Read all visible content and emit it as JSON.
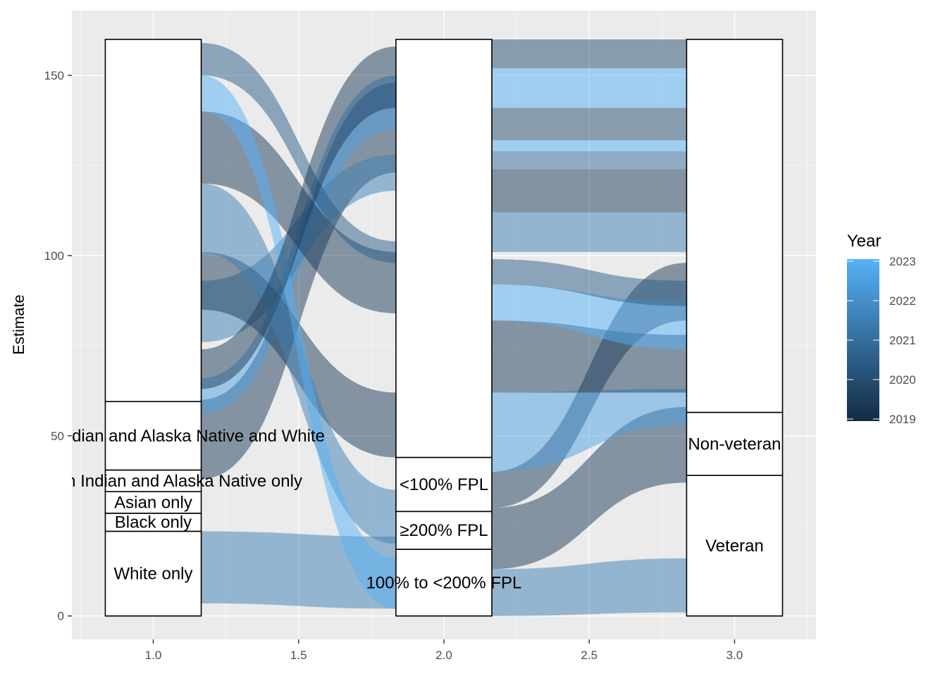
{
  "chart_data": {
    "type": "alluvial",
    "title": "",
    "xlabel": "",
    "ylabel": "Estimate",
    "xlim": [
      0.72,
      3.28
    ],
    "ylim": [
      -6.5,
      168
    ],
    "x_ticks": [
      1.0,
      1.5,
      2.0,
      2.5,
      3.0
    ],
    "x_tick_labels": [
      "1.0",
      "1.5",
      "2.0",
      "2.5",
      "3.0"
    ],
    "y_ticks": [
      0,
      50,
      100,
      150
    ],
    "y_tick_labels": [
      "0",
      "50",
      "100",
      "150"
    ],
    "grid": true,
    "axes": [
      {
        "x": 1,
        "strata": [
          {
            "label": "White only",
            "ymin": 0,
            "ymax": 23.5
          },
          {
            "label": "Black only",
            "ymin": 23.5,
            "ymax": 28.5
          },
          {
            "label": "Asian only",
            "ymin": 28.5,
            "ymax": 34.5
          },
          {
            "label": "American Indian and Alaska Native only",
            "ymin": 34.5,
            "ymax": 40.5
          },
          {
            "label": "American Indian and Alaska Native and White",
            "ymin": 40.5,
            "ymax": 59.5
          },
          {
            "label": "",
            "ymin": 59.5,
            "ymax": 160
          }
        ]
      },
      {
        "x": 2,
        "strata": [
          {
            "label": "100% to <200% FPL",
            "ymin": 0,
            "ymax": 18.5
          },
          {
            "label": "≥200% FPL",
            "ymin": 18.5,
            "ymax": 29
          },
          {
            "label": "<100% FPL",
            "ymin": 29,
            "ymax": 44
          },
          {
            "label": "",
            "ymin": 44,
            "ymax": 160
          }
        ]
      },
      {
        "x": 3,
        "strata": [
          {
            "label": "Veteran",
            "ymin": 0,
            "ymax": 39
          },
          {
            "label": "Non-veteran",
            "ymin": 39,
            "ymax": 56.5
          },
          {
            "label": "",
            "ymin": 56.5,
            "ymax": 160
          }
        ]
      }
    ],
    "flows": [
      {
        "from": 1,
        "to": 2,
        "y0a": 3.5,
        "y0b": 23.5,
        "y1a": 2,
        "y1b": 22,
        "year": 2021.5
      },
      {
        "from": 1,
        "to": 2,
        "y0a": 38,
        "y0b": 60,
        "y1a": 123,
        "y1b": 148,
        "year": 2019.5
      },
      {
        "from": 1,
        "to": 2,
        "y0a": 56,
        "y0b": 66,
        "y1a": 135,
        "y1b": 150,
        "year": 2022.5
      },
      {
        "from": 1,
        "to": 2,
        "y0a": 76,
        "y0b": 93,
        "y1a": 118,
        "y1b": 128,
        "year": 2021.5
      },
      {
        "from": 1,
        "to": 2,
        "y0a": 85,
        "y0b": 101,
        "y1a": 44,
        "y1b": 62,
        "year": 2019.5
      },
      {
        "from": 1,
        "to": 2,
        "y0a": 101,
        "y0b": 120,
        "y1a": 20,
        "y1b": 35,
        "year": 2021.5
      },
      {
        "from": 1,
        "to": 2,
        "y0a": 120,
        "y0b": 140,
        "y1a": 84,
        "y1b": 101,
        "year": 2019.5
      },
      {
        "from": 1,
        "to": 2,
        "y0a": 140,
        "y0b": 150,
        "y1a": 2,
        "y1b": 16,
        "year": 2023
      },
      {
        "from": 1,
        "to": 2,
        "y0a": 150,
        "y0b": 159,
        "y1a": 98,
        "y1b": 104,
        "year": 2020.5
      },
      {
        "from": 1,
        "to": 2,
        "y0a": 63,
        "y0b": 74,
        "y1a": 141,
        "y1b": 158,
        "year": 2019.5
      },
      {
        "from": 2,
        "to": 3,
        "y0a": 101,
        "y0b": 112,
        "y1a": 101,
        "y1b": 112,
        "year": 2021.5
      },
      {
        "from": 2,
        "to": 3,
        "y0a": 112,
        "y0b": 124,
        "y1a": 112,
        "y1b": 124,
        "year": 2019.5
      },
      {
        "from": 2,
        "to": 3,
        "y0a": 124,
        "y0b": 129,
        "y1a": 124,
        "y1b": 129,
        "year": 2021
      },
      {
        "from": 2,
        "to": 3,
        "y0a": 129,
        "y0b": 132,
        "y1a": 129,
        "y1b": 132,
        "year": 2023
      },
      {
        "from": 2,
        "to": 3,
        "y0a": 132,
        "y0b": 141,
        "y1a": 132,
        "y1b": 141,
        "year": 2020
      },
      {
        "from": 2,
        "to": 3,
        "y0a": 141,
        "y0b": 152,
        "y1a": 141,
        "y1b": 152,
        "year": 2023
      },
      {
        "from": 2,
        "to": 3,
        "y0a": 152,
        "y0b": 160,
        "y1a": 152,
        "y1b": 160,
        "year": 2020
      },
      {
        "from": 2,
        "to": 3,
        "y0a": 0,
        "y0b": 13,
        "y1a": 1,
        "y1b": 16,
        "year": 2021.5
      },
      {
        "from": 2,
        "to": 3,
        "y0a": 13,
        "y0b": 30,
        "y1a": 37,
        "y1b": 58,
        "year": 2019.5
      },
      {
        "from": 2,
        "to": 3,
        "y0a": 30,
        "y0b": 40,
        "y1a": 82,
        "y1b": 98,
        "year": 2019.5
      },
      {
        "from": 2,
        "to": 3,
        "y0a": 40,
        "y0b": 62,
        "y1a": 53,
        "y1b": 63,
        "year": 2022.5
      },
      {
        "from": 2,
        "to": 3,
        "y0a": 62,
        "y0b": 82,
        "y1a": 62,
        "y1b": 78,
        "year": 2019.5
      },
      {
        "from": 2,
        "to": 3,
        "y0a": 82,
        "y0b": 92,
        "y1a": 74,
        "y1b": 87,
        "year": 2023
      },
      {
        "from": 2,
        "to": 3,
        "y0a": 92,
        "y0b": 99,
        "y1a": 86,
        "y1b": 93,
        "year": 2020.5
      }
    ],
    "legend": {
      "title": "Year",
      "position": "right",
      "min": 2019,
      "max": 2023,
      "breaks": [
        2019,
        2020,
        2021,
        2022,
        2023
      ],
      "break_labels": [
        "2019",
        "2020",
        "2021",
        "2022",
        "2023"
      ],
      "color_low": "#132B43",
      "color_high": "#56B1F7"
    },
    "colors": {
      "panel_bg": "#EBEBEB",
      "grid_major": "#FFFFFF",
      "stratum_fill": "#FFFFFF",
      "stratum_border": "#000000"
    }
  }
}
